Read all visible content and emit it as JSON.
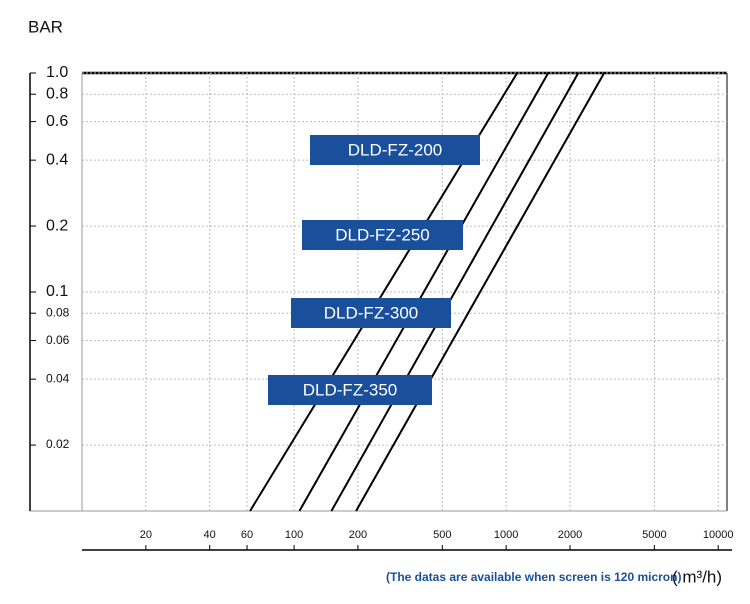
{
  "chart_data": {
    "type": "line",
    "y_label": "BAR",
    "x_label": "( m³/h)",
    "note": "(The datas are available when screen is 120 micron)",
    "log_x": true,
    "log_y": true,
    "grid": true,
    "xlim": [
      10,
      11000
    ],
    "ylim": [
      0.01,
      1
    ],
    "xticks": [
      20,
      40,
      60,
      100,
      200,
      500,
      1000,
      2000,
      5000,
      10000
    ],
    "yticks": [
      {
        "value": 1,
        "label": "1.0"
      },
      0.8,
      0.6,
      0.4,
      0.2,
      0.1,
      0.08,
      0.06,
      0.04,
      0.02
    ],
    "label_color": "#1a4f9c",
    "series": [
      {
        "name": "DLD-FZ-200",
        "color": "#000000",
        "x": [
          62,
          1127
        ],
        "values": [
          0.01,
          1
        ]
      },
      {
        "name": "DLD-FZ-250",
        "color": "#000000",
        "x": [
          106,
          1578
        ],
        "values": [
          0.01,
          1
        ]
      },
      {
        "name": "DLD-FZ-300",
        "color": "#000000",
        "x": [
          150,
          2188
        ],
        "values": [
          0.01,
          1
        ]
      },
      {
        "name": "DLD-FZ-350",
        "color": "#000000",
        "x": [
          196,
          2897
        ],
        "values": [
          0.01,
          1
        ]
      }
    ]
  }
}
